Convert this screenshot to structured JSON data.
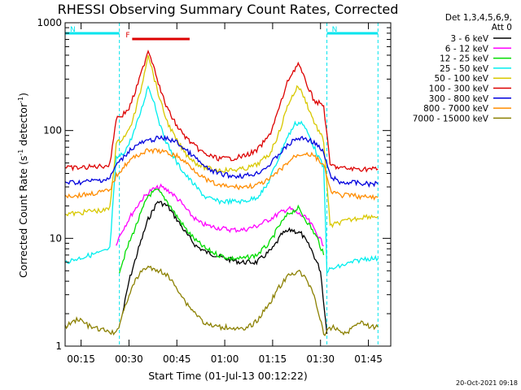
{
  "chart_data": {
    "type": "line",
    "title": "RHESSI Observing Summary Count Rates, Corrected",
    "xlabel": "Start Time (01-Jul-13 00:12:22)",
    "ylabel": "Corrected Count Rate (s",
    "ylabel_sup1": "-1",
    "ylabel_mid": " detector",
    "ylabel_sup2": "-1",
    "ylabel_end": ")",
    "yscale": "log",
    "xlim": [
      "00:10",
      "01:52"
    ],
    "ylim": [
      1,
      1000
    ],
    "grid": false,
    "legend_position": "right",
    "legend_header": [
      "Det 1,3,4,5,6,9,",
      "Att 0"
    ],
    "x_ticks": [
      "00:15",
      "00:30",
      "00:45",
      "01:00",
      "01:15",
      "01:30",
      "01:45"
    ],
    "y_ticks": [
      "1",
      "10",
      "100",
      "1000"
    ],
    "timestamp": "20-Oct-2021 09:18",
    "flags": [
      {
        "label": "N",
        "color": "#00e5ee",
        "start": "00:10",
        "end": "00:27"
      },
      {
        "label": "N",
        "color": "#00e5ee",
        "start": "01:32",
        "end": "01:48"
      },
      {
        "label": "F",
        "color": "#dd0000",
        "start": "00:31",
        "end": "00:49"
      }
    ],
    "series": [
      {
        "name": "3 - 6 keV",
        "color": "#000000",
        "y_start": "00:29",
        "y_end": "01:32",
        "values": [
          [
            0.0,
            "gap"
          ]
        ]
      },
      {
        "name": "6 - 12 keV",
        "color": "#ff00ff"
      },
      {
        "name": "12 - 25 keV",
        "color": "#00dd00"
      },
      {
        "name": "25 - 50 keV",
        "color": "#00eeee"
      },
      {
        "name": "50 - 100 keV",
        "color": "#d8c800"
      },
      {
        "name": "100 - 300 keV",
        "color": "#dd0000"
      },
      {
        "name": "300 - 800 keV",
        "color": "#0000dd"
      },
      {
        "name": "800 - 7000 keV",
        "color": "#ff8c00"
      },
      {
        "name": "7000 - 15000 keV",
        "color": "#8b8000"
      }
    ],
    "series_values": {
      "3 - 6 keV": {
        "x": [
          "00:28",
          "00:30",
          "00:33",
          "00:36",
          "00:39",
          "00:42",
          "00:45",
          "00:48",
          "00:51",
          "00:54",
          "00:57",
          "01:00",
          "01:05",
          "01:10",
          "01:15",
          "01:18",
          "01:21",
          "01:24",
          "01:27",
          "01:30",
          "01:32"
        ],
        "y": [
          2,
          4,
          8,
          15,
          22,
          20,
          15,
          11,
          8.5,
          7.5,
          7,
          6.5,
          6,
          6,
          8,
          11,
          12,
          11,
          8,
          5,
          1.3
        ]
      },
      "6 - 12 keV": {
        "x": [
          "00:26",
          "00:28",
          "00:31",
          "00:34",
          "00:37",
          "00:40",
          "00:43",
          "00:46",
          "00:49",
          "00:52",
          "00:55",
          "00:58",
          "01:02",
          "01:06",
          "01:10",
          "01:14",
          "01:17",
          "01:20",
          "01:23",
          "01:26",
          "01:29",
          "01:31"
        ],
        "y": [
          9,
          12,
          17,
          23,
          28,
          30,
          27,
          22,
          17,
          14,
          13,
          12.5,
          12,
          12,
          13,
          15,
          17,
          19,
          17,
          15,
          11,
          8.5
        ]
      },
      "12 - 25 keV": {
        "x": [
          "00:27",
          "00:30",
          "00:33",
          "00:36",
          "00:39",
          "00:42",
          "00:45",
          "00:48",
          "00:51",
          "00:54",
          "00:58",
          "01:02",
          "01:06",
          "01:10",
          "01:14",
          "01:17",
          "01:20",
          "01:23",
          "01:26",
          "01:29",
          "01:31"
        ],
        "y": [
          5,
          9,
          15,
          25,
          28,
          22,
          16,
          12,
          9.5,
          8,
          7,
          6.5,
          6.5,
          7,
          9,
          13,
          17,
          19,
          14,
          10,
          7
        ]
      },
      "25 - 50 keV": {
        "x": [
          "00:10",
          "00:14",
          "00:18",
          "00:22",
          "00:24",
          "00:26",
          "00:28",
          "00:30",
          "00:32",
          "00:34",
          "00:36",
          "00:38",
          "00:40",
          "00:42",
          "00:45",
          "00:48",
          "00:51",
          "00:54",
          "00:58",
          "01:02",
          "01:06",
          "01:10",
          "01:13",
          "01:16",
          "01:19",
          "01:22",
          "01:24",
          "01:26",
          "01:29",
          "01:31",
          "01:32",
          "01:36",
          "01:40",
          "01:44",
          "01:48"
        ],
        "y": [
          6,
          6.5,
          7,
          7.5,
          8,
          55,
          60,
          75,
          105,
          160,
          260,
          180,
          105,
          75,
          50,
          38,
          30,
          24,
          22,
          22,
          22,
          24,
          30,
          48,
          80,
          115,
          120,
          95,
          60,
          45,
          5,
          5.5,
          6,
          6.5,
          6.5
        ]
      },
      "50 - 100 keV": {
        "x": [
          "00:10",
          "00:14",
          "00:18",
          "00:22",
          "00:24",
          "00:26",
          "00:28",
          "00:30",
          "00:32",
          "00:34",
          "00:36",
          "00:38",
          "00:40",
          "00:42",
          "00:45",
          "00:48",
          "00:51",
          "00:54",
          "00:58",
          "01:02",
          "01:06",
          "01:10",
          "01:14",
          "01:17",
          "01:20",
          "01:23",
          "01:25",
          "01:28",
          "01:31",
          "01:33",
          "01:36",
          "01:40",
          "01:44",
          "01:48"
        ],
        "y": [
          17,
          17,
          18,
          18,
          19,
          75,
          85,
          100,
          150,
          260,
          520,
          300,
          180,
          120,
          80,
          60,
          50,
          45,
          43,
          43,
          44,
          48,
          60,
          95,
          180,
          260,
          200,
          120,
          80,
          13,
          14,
          15,
          16,
          16
        ]
      },
      "100 - 300 keV": {
        "x": [
          "00:10",
          "00:14",
          "00:18",
          "00:22",
          "00:24",
          "00:26",
          "00:28",
          "00:30",
          "00:32",
          "00:34",
          "00:36",
          "00:38",
          "00:40",
          "00:42",
          "00:45",
          "00:48",
          "00:51",
          "00:54",
          "00:58",
          "01:02",
          "01:06",
          "01:10",
          "01:14",
          "01:17",
          "01:20",
          "01:23",
          "01:25",
          "01:28",
          "01:31",
          "01:33",
          "01:36",
          "01:40",
          "01:44",
          "01:48"
        ],
        "y": [
          45,
          45,
          46,
          47,
          48,
          130,
          140,
          160,
          230,
          350,
          560,
          380,
          230,
          160,
          110,
          85,
          70,
          60,
          55,
          55,
          58,
          65,
          90,
          160,
          300,
          420,
          300,
          190,
          170,
          48,
          45,
          44,
          44,
          44
        ]
      },
      "300 - 800 keV": {
        "x": [
          "00:10",
          "00:14",
          "00:18",
          "00:22",
          "00:24",
          "00:26",
          "00:28",
          "00:30",
          "00:33",
          "00:36",
          "00:39",
          "00:42",
          "00:45",
          "00:48",
          "00:51",
          "00:54",
          "00:58",
          "01:02",
          "01:06",
          "01:10",
          "01:14",
          "01:18",
          "01:22",
          "01:25",
          "01:28",
          "01:31",
          "01:33",
          "01:36",
          "01:40",
          "01:44",
          "01:48"
        ],
        "y": [
          33,
          33,
          34,
          35,
          36,
          48,
          55,
          65,
          75,
          80,
          85,
          84,
          78,
          65,
          55,
          45,
          40,
          38,
          38,
          40,
          48,
          65,
          83,
          85,
          78,
          62,
          38,
          33,
          33,
          32,
          32
        ]
      },
      "800 - 7000 keV": {
        "x": [
          "00:10",
          "00:14",
          "00:18",
          "00:22",
          "00:24",
          "00:26",
          "00:28",
          "00:30",
          "00:33",
          "00:36",
          "00:39",
          "00:42",
          "00:45",
          "00:48",
          "00:51",
          "00:54",
          "00:58",
          "01:02",
          "01:06",
          "01:10",
          "01:14",
          "01:18",
          "01:22",
          "01:25",
          "01:28",
          "01:31",
          "01:33",
          "01:36",
          "01:40",
          "01:44",
          "01:48"
        ],
        "y": [
          25,
          25,
          26,
          27,
          28,
          38,
          45,
          52,
          60,
          65,
          65,
          62,
          58,
          50,
          42,
          35,
          31,
          30,
          30,
          31,
          35,
          45,
          58,
          62,
          58,
          48,
          28,
          25,
          25,
          24,
          24
        ]
      },
      "7000 - 15000 keV": {
        "x": [
          "00:10",
          "00:14",
          "00:18",
          "00:22",
          "00:26",
          "00:28",
          "00:30",
          "00:32",
          "00:34",
          "00:36",
          "00:38",
          "00:40",
          "00:42",
          "00:45",
          "00:48",
          "00:51",
          "00:54",
          "00:58",
          "01:02",
          "01:06",
          "01:10",
          "01:14",
          "01:17",
          "01:20",
          "01:23",
          "01:26",
          "01:28",
          "01:31",
          "01:34",
          "01:38",
          "01:42",
          "01:46",
          "01:48"
        ],
        "y": [
          1.5,
          1.8,
          1.5,
          1.4,
          1.3,
          2,
          3,
          4,
          5,
          5.5,
          5,
          5,
          4.5,
          3.5,
          2.5,
          2,
          1.6,
          1.5,
          1.5,
          1.4,
          1.7,
          2.5,
          3.5,
          4.5,
          5,
          4,
          3,
          1.3,
          1.5,
          1.3,
          1.7,
          1.5,
          1.5
        ]
      }
    }
  }
}
